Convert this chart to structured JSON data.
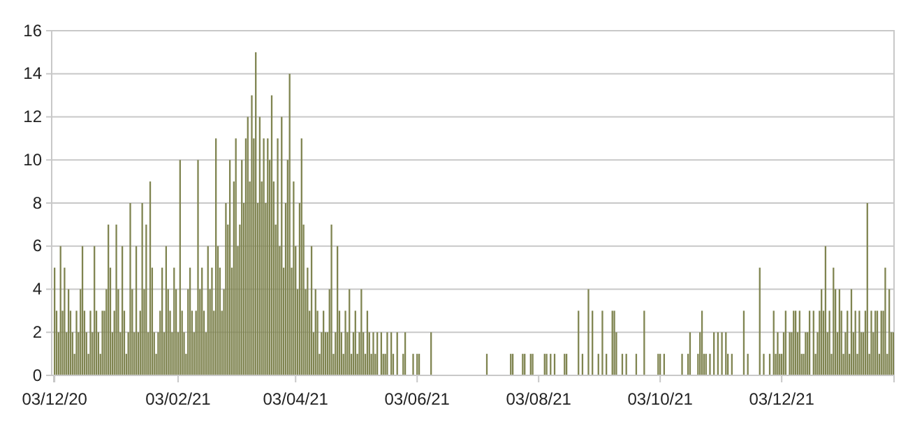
{
  "chart_data": {
    "type": "bar",
    "color": "#7f8450",
    "grid": "y",
    "ylim": [
      0,
      16
    ],
    "yticks": [
      0,
      2,
      4,
      6,
      8,
      10,
      12,
      14,
      16
    ],
    "categories": [
      "03/12/20",
      null,
      null,
      null,
      null,
      null,
      null,
      null,
      null,
      null,
      null,
      null,
      null,
      null,
      null,
      null,
      null,
      null,
      null,
      null,
      null,
      null,
      null,
      null,
      null,
      null,
      null,
      null,
      null,
      null,
      null,
      null,
      null,
      null,
      null,
      null,
      null,
      null,
      null,
      null,
      null,
      null,
      null,
      null,
      null,
      null,
      null,
      null,
      null,
      null,
      null,
      null,
      null,
      null,
      null,
      null,
      null,
      null,
      null,
      null,
      null,
      null,
      "03/02/21",
      null,
      null,
      null,
      null,
      null,
      null,
      null,
      null,
      null,
      null,
      null,
      null,
      null,
      null,
      null,
      null,
      null,
      null,
      null,
      null,
      null,
      null,
      null,
      null,
      null,
      null,
      null,
      null,
      null,
      null,
      null,
      null,
      null,
      null,
      null,
      null,
      null,
      null,
      null,
      null,
      null,
      null,
      null,
      null,
      null,
      null,
      null,
      null,
      null,
      null,
      null,
      null,
      null,
      null,
      null,
      null,
      null,
      null,
      "03/04/21",
      null,
      null,
      null,
      null,
      null,
      null,
      null,
      null,
      null,
      null,
      null,
      null,
      null,
      null,
      null,
      null,
      null,
      null,
      null,
      null,
      null,
      null,
      null,
      null,
      null,
      null,
      null,
      null,
      null,
      null,
      null,
      null,
      null,
      null,
      null,
      null,
      null,
      null,
      null,
      null,
      null,
      null,
      null,
      null,
      null,
      null,
      null,
      null,
      null,
      null,
      null,
      null,
      null,
      null,
      null,
      null,
      null,
      null,
      null,
      null,
      "03/06/21",
      null,
      null,
      null,
      null,
      null,
      null,
      null,
      null,
      null,
      null,
      null,
      null,
      null,
      null,
      null,
      null,
      null,
      null,
      null,
      null,
      null,
      null,
      null,
      null,
      null,
      null,
      null,
      null,
      null,
      null,
      null,
      null,
      null,
      null,
      null,
      null,
      null,
      null,
      null,
      null,
      null,
      null,
      null,
      null,
      null,
      null,
      null,
      null,
      null,
      null,
      null,
      null,
      null,
      null,
      null,
      null,
      null,
      null,
      null,
      null,
      "03/08/21",
      null,
      null,
      null,
      null,
      null,
      null,
      null,
      null,
      null,
      null,
      null,
      null,
      null,
      null,
      null,
      null,
      null,
      null,
      null,
      null,
      null,
      null,
      null,
      null,
      null,
      null,
      null,
      null,
      null,
      null,
      null,
      null,
      null,
      null,
      null,
      null,
      null,
      null,
      null,
      null,
      null,
      null,
      null,
      null,
      null,
      null,
      null,
      null,
      null,
      null,
      null,
      null,
      null,
      null,
      null,
      null,
      null,
      null,
      null,
      null,
      "03/10/21",
      null,
      null,
      null,
      null,
      null,
      null,
      null,
      null,
      null,
      null,
      null,
      null,
      null,
      null,
      null,
      null,
      null,
      null,
      null,
      null,
      null,
      null,
      null,
      null,
      null,
      null,
      null,
      null,
      null,
      null,
      null,
      null,
      null,
      null,
      null,
      null,
      null,
      null,
      null,
      null,
      null,
      null,
      null,
      null,
      null,
      null,
      null,
      null,
      null,
      null,
      null,
      null,
      null,
      null,
      null,
      null,
      null,
      null,
      null,
      null,
      "03/12/21",
      null,
      null,
      null,
      null,
      null,
      null,
      null,
      null,
      null,
      null,
      null,
      null,
      null,
      null,
      null,
      null,
      null,
      null,
      null,
      null,
      null,
      null,
      null,
      null,
      null,
      null,
      null,
      null,
      null,
      null,
      null,
      null,
      null,
      null,
      null,
      null,
      null,
      null,
      null,
      null,
      null,
      null,
      null,
      null,
      null,
      null,
      null,
      null,
      null,
      null,
      null,
      null,
      null,
      null,
      null,
      null
    ],
    "values": [
      5,
      3,
      2,
      6,
      3,
      5,
      2,
      4,
      3,
      2,
      1,
      3,
      2,
      4,
      6,
      3,
      2,
      1,
      3,
      2,
      6,
      3,
      2,
      1,
      3,
      3,
      4,
      7,
      5,
      2,
      3,
      7,
      4,
      2,
      6,
      3,
      1,
      2,
      8,
      4,
      2,
      6,
      2,
      3,
      8,
      4,
      7,
      2,
      9,
      5,
      2,
      1,
      2,
      3,
      5,
      2,
      6,
      4,
      3,
      2,
      5,
      4,
      2,
      10,
      3,
      2,
      1,
      4,
      5,
      3,
      2,
      3,
      10,
      4,
      5,
      3,
      2,
      6,
      4,
      5,
      3,
      11,
      6,
      5,
      3,
      4,
      8,
      7,
      10,
      5,
      9,
      11,
      6,
      7,
      10,
      8,
      11,
      12,
      9,
      13,
      11,
      15,
      8,
      12,
      9,
      11,
      8,
      11,
      10,
      13,
      9,
      7,
      11,
      6,
      12,
      5,
      8,
      10,
      14,
      5,
      9,
      6,
      4,
      8,
      11,
      7,
      4,
      5,
      3,
      6,
      2,
      4,
      3,
      1,
      2,
      3,
      2,
      2,
      4,
      7,
      1,
      2,
      6,
      3,
      2,
      1,
      3,
      2,
      4,
      1,
      2,
      3,
      1,
      2,
      4,
      2,
      1,
      3,
      2,
      1,
      2,
      1,
      2,
      0,
      2,
      1,
      1,
      2,
      0,
      2,
      1,
      0,
      2,
      0,
      0,
      1,
      2,
      0,
      0,
      0,
      1,
      0,
      1,
      1,
      0,
      0,
      0,
      0,
      0,
      2,
      0,
      0,
      0,
      0,
      0,
      0,
      0,
      0,
      0,
      0,
      0,
      0,
      0,
      0,
      0,
      0,
      0,
      0,
      0,
      0,
      0,
      0,
      0,
      0,
      0,
      0,
      0,
      1,
      0,
      0,
      0,
      0,
      0,
      0,
      0,
      0,
      0,
      0,
      0,
      1,
      1,
      0,
      0,
      0,
      0,
      1,
      1,
      0,
      0,
      1,
      1,
      0,
      0,
      0,
      0,
      0,
      1,
      1,
      0,
      1,
      0,
      1,
      0,
      0,
      0,
      0,
      1,
      1,
      0,
      0,
      0,
      0,
      0,
      3,
      0,
      1,
      0,
      0,
      4,
      0,
      3,
      0,
      0,
      1,
      0,
      3,
      0,
      1,
      0,
      0,
      3,
      3,
      2,
      0,
      0,
      1,
      0,
      1,
      0,
      0,
      0,
      0,
      1,
      0,
      0,
      0,
      3,
      0,
      0,
      0,
      0,
      0,
      0,
      1,
      1,
      0,
      1,
      0,
      0,
      0,
      0,
      0,
      0,
      0,
      0,
      1,
      0,
      0,
      1,
      2,
      0,
      0,
      0,
      1,
      2,
      3,
      1,
      1,
      0,
      1,
      0,
      2,
      0,
      2,
      0,
      2,
      0,
      2,
      1,
      0,
      1,
      0,
      0,
      0,
      0,
      0,
      3,
      0,
      1,
      0,
      0,
      0,
      0,
      0,
      5,
      0,
      1,
      0,
      0,
      1,
      0,
      3,
      1,
      2,
      1,
      1,
      2,
      3,
      0,
      2,
      2,
      3,
      3,
      2,
      3,
      1,
      1,
      2,
      2,
      3,
      0,
      3,
      1,
      2,
      3,
      4,
      3,
      6,
      2,
      3,
      1,
      5,
      4,
      2,
      4,
      3,
      1,
      2,
      3,
      1,
      4,
      2,
      3,
      1,
      3,
      2,
      2,
      3,
      8,
      1,
      3,
      2,
      3,
      3,
      1,
      3,
      3,
      5,
      1,
      4,
      2,
      2
    ]
  }
}
